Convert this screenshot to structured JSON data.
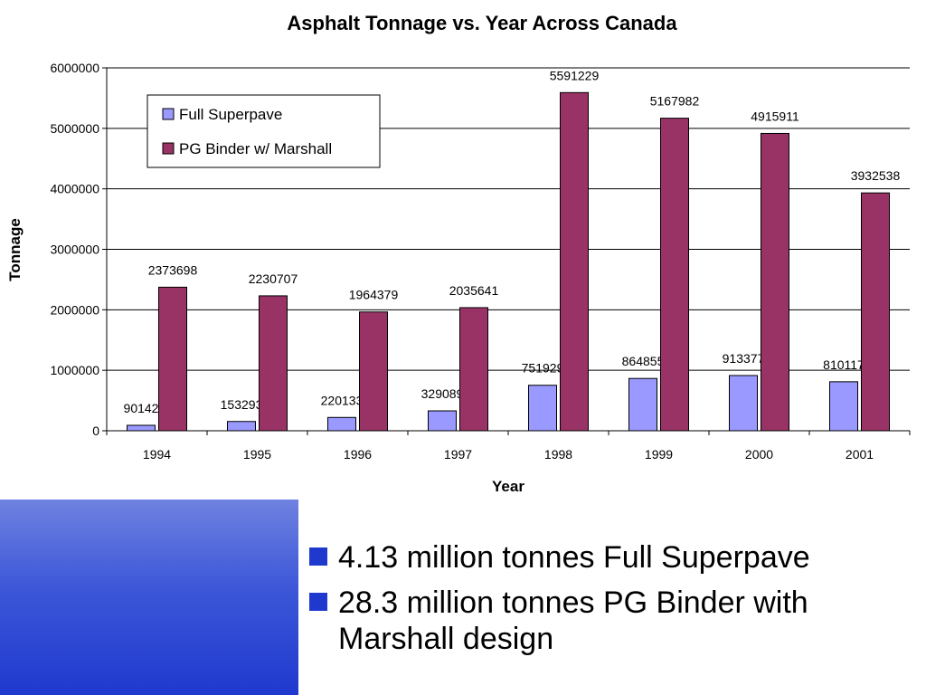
{
  "chart_data": {
    "type": "bar",
    "title": "Asphalt Tonnage vs. Year Across Canada",
    "xlabel": "Year",
    "ylabel": "Tonnage",
    "ylim": [
      0,
      6000000
    ],
    "yticks": [
      "0",
      "1000000",
      "2000000",
      "3000000",
      "4000000",
      "5000000",
      "6000000"
    ],
    "grid": true,
    "legend_position": "top-left",
    "categories": [
      "1994",
      "1995",
      "1996",
      "1997",
      "1998",
      "1999",
      "2000",
      "2001"
    ],
    "series": [
      {
        "name": "Full Superpave",
        "color": "#9999ff",
        "values": [
          90142,
          153293,
          220133,
          329089,
          751929,
          864855,
          913377,
          810117
        ]
      },
      {
        "name": "PG Binder w/ Marshall",
        "color": "#993366",
        "values": [
          2373698,
          2230707,
          1964379,
          2035641,
          5591229,
          5167982,
          4915911,
          3932538
        ]
      }
    ]
  },
  "bullets": [
    "4.13 million tonnes Full Superpave",
    "28.3 million tonnes PG Binder with Marshall design"
  ],
  "colors": {
    "accent_blue": "#1f39cf",
    "gridline": "#000000"
  }
}
